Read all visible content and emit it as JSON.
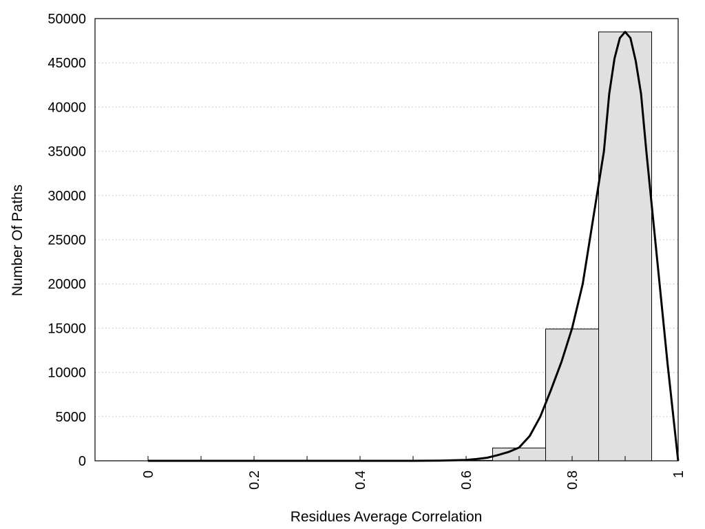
{
  "chart_data": {
    "type": "bar",
    "xlabel": "Residues Average Correlation",
    "ylabel": "Number Of Paths",
    "xlim": [
      -0.1,
      1.0
    ],
    "ylim": [
      0,
      50000
    ],
    "grid": true,
    "x_ticks": [
      0,
      0.2,
      0.4,
      0.6,
      0.8,
      1
    ],
    "x_tick_labels": [
      "0",
      "0.2",
      "0.4",
      "0.6",
      "0.8",
      "1"
    ],
    "x_minor_ticks": [
      0.1,
      0.3,
      0.5,
      0.7,
      0.9
    ],
    "y_ticks": [
      0,
      5000,
      10000,
      15000,
      20000,
      25000,
      30000,
      35000,
      40000,
      45000,
      50000
    ],
    "y_tick_labels": [
      "0",
      "5000",
      "10000",
      "15000",
      "20000",
      "25000",
      "30000",
      "35000",
      "40000",
      "45000",
      "50000"
    ],
    "bin_width": 0.1,
    "bars": [
      {
        "center": 0.0,
        "value": 0
      },
      {
        "center": 0.1,
        "value": 0
      },
      {
        "center": 0.2,
        "value": 0
      },
      {
        "center": 0.3,
        "value": 0
      },
      {
        "center": 0.4,
        "value": 0
      },
      {
        "center": 0.5,
        "value": 0
      },
      {
        "center": 0.6,
        "value": 50
      },
      {
        "center": 0.7,
        "value": 1450
      },
      {
        "center": 0.8,
        "value": 14900
      },
      {
        "center": 0.9,
        "value": 48500
      }
    ],
    "fit_curve": {
      "x": [
        0,
        0.1,
        0.2,
        0.3,
        0.4,
        0.5,
        0.55,
        0.6,
        0.62,
        0.64,
        0.66,
        0.68,
        0.7,
        0.72,
        0.74,
        0.76,
        0.78,
        0.8,
        0.82,
        0.84,
        0.86,
        0.87,
        0.88,
        0.89,
        0.9,
        0.91,
        0.92,
        0.93,
        0.94,
        0.96,
        0.98,
        1.0
      ],
      "y": [
        0,
        0,
        0,
        0,
        0,
        0,
        20,
        100,
        200,
        350,
        650,
        1000,
        1500,
        2800,
        5000,
        8000,
        11200,
        15000,
        20000,
        27500,
        35000,
        41500,
        45500,
        47800,
        48500,
        47800,
        45200,
        41500,
        35000,
        23000,
        11000,
        0
      ]
    }
  }
}
